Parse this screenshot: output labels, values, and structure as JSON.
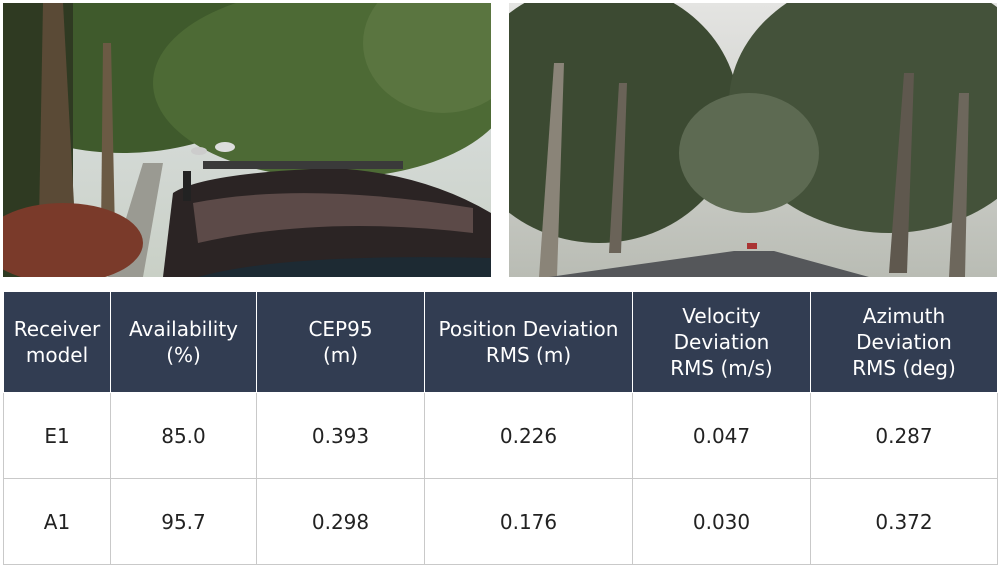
{
  "table": {
    "header": [
      "Receiver\nmodel",
      "Availability\n(%)",
      "CEP95\n(m)",
      "Position Deviation\nRMS (m)",
      "Velocity\nDeviation\nRMS (m/s)",
      "Azimuth\nDeviation\nRMS (deg)"
    ],
    "rows": [
      [
        "E1",
        "85.0",
        "0.393",
        "0.226",
        "0.047",
        "0.287"
      ],
      [
        "A1",
        "95.7",
        "0.298",
        "0.176",
        "0.030",
        "0.372"
      ]
    ]
  }
}
